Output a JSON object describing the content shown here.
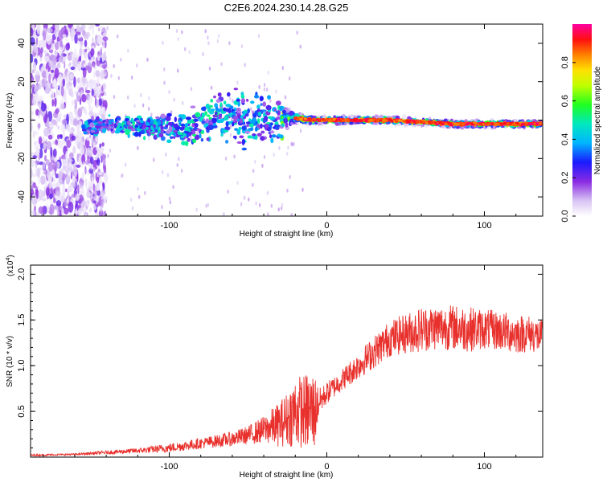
{
  "title": "C2E6.2024.230.14.28.G25",
  "chart_data": [
    {
      "type": "heatmap",
      "title": "C2E6.2024.230.14.28.G25",
      "xlabel": "Height of straight line (km)",
      "ylabel": "Frequency (Hz)",
      "xlim": [
        -188,
        137
      ],
      "ylim": [
        -50,
        50
      ],
      "xticks": [
        -100,
        0,
        100
      ],
      "xtick_labels": [
        "-100",
        "0",
        "100"
      ],
      "yticks": [
        -40,
        -20,
        0,
        20,
        40
      ],
      "ytick_labels": [
        "-40",
        "-20",
        "0",
        "20",
        "40"
      ],
      "colorbar": {
        "label": "Normalized spectral amplitude",
        "range": [
          0.0,
          1.0
        ],
        "ticks": [
          0.0,
          0.2,
          0.4,
          0.6,
          0.8
        ],
        "tick_labels": [
          "0.0",
          "0.2",
          "0.4",
          "0.6",
          "0.8"
        ]
      },
      "ridge": {
        "x": [
          -188,
          -155,
          -140,
          -120,
          -100,
          -90,
          -80,
          -70,
          -60,
          -50,
          -40,
          -30,
          -20,
          -10,
          0,
          20,
          40,
          60,
          80,
          100,
          120,
          137
        ],
        "center_freq": [
          -4,
          -3,
          -3,
          -3,
          -4,
          -5,
          -1,
          2,
          3,
          0,
          -1,
          1,
          1,
          0,
          0,
          0,
          0,
          -1,
          -2,
          -2,
          -2,
          -2
        ],
        "width_hz": [
          40,
          5,
          4,
          5,
          6,
          8,
          10,
          14,
          14,
          14,
          12,
          10,
          3,
          2,
          2,
          2,
          2,
          2,
          2,
          2,
          2,
          2
        ],
        "peak_amplitude": [
          0.05,
          0.25,
          0.3,
          0.3,
          0.3,
          0.3,
          0.35,
          0.35,
          0.3,
          0.3,
          0.3,
          0.3,
          0.95,
          0.95,
          0.95,
          0.95,
          0.95,
          0.95,
          0.9,
          0.9,
          0.9,
          0.9
        ]
      }
    },
    {
      "type": "line",
      "xlabel": "Height of straight line (km)",
      "ylabel": "SNR (10 * v/v)",
      "scale_label": "(x10",
      "scale_exp": "4",
      "scale_close": ")",
      "xlim": [
        -188,
        137
      ],
      "ylim": [
        0,
        2.1
      ],
      "xticks": [
        -100,
        0,
        100
      ],
      "xtick_labels": [
        "-100",
        "0",
        "100"
      ],
      "yticks": [
        0.5,
        1.0,
        1.5,
        2.0
      ],
      "ytick_labels": [
        "0.5",
        "1.0",
        "1.5",
        "2.0"
      ],
      "series": [
        {
          "name": "SNR",
          "color": "#e8302c",
          "x": [
            -188,
            -160,
            -140,
            -120,
            -100,
            -80,
            -60,
            -50,
            -40,
            -30,
            -25,
            -20,
            -15,
            -10,
            -8,
            -5,
            0,
            10,
            20,
            30,
            40,
            50,
            60,
            70,
            80,
            90,
            100,
            110,
            120,
            130,
            137
          ],
          "mean": [
            0.02,
            0.03,
            0.05,
            0.07,
            0.1,
            0.15,
            0.2,
            0.24,
            0.3,
            0.36,
            0.42,
            0.5,
            0.5,
            0.5,
            0.5,
            0.6,
            0.7,
            0.85,
            1.0,
            1.15,
            1.3,
            1.35,
            1.4,
            1.42,
            1.42,
            1.4,
            1.4,
            1.38,
            1.35,
            1.35,
            1.3
          ],
          "noise": [
            0.01,
            0.01,
            0.02,
            0.03,
            0.05,
            0.06,
            0.08,
            0.1,
            0.15,
            0.25,
            0.3,
            0.4,
            0.4,
            0.45,
            0.45,
            0.15,
            0.12,
            0.12,
            0.15,
            0.18,
            0.2,
            0.22,
            0.25,
            0.25,
            0.25,
            0.25,
            0.22,
            0.22,
            0.22,
            0.2,
            0.2
          ]
        }
      ]
    }
  ]
}
